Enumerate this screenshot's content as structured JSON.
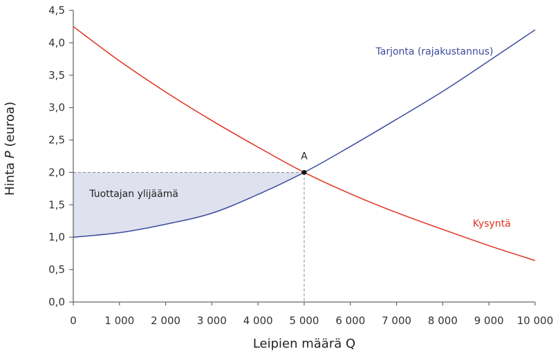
{
  "chart_data": {
    "type": "line",
    "title": "",
    "xlabel": "Leipien määrä Q",
    "ylabel": "Hinta P (euroa)",
    "ylabel_parts": {
      "pre": "Hinta ",
      "italic": "P",
      "post": " (euroa)"
    },
    "xlim": [
      0,
      10000
    ],
    "ylim": [
      0,
      4.5
    ],
    "grid": false,
    "x_ticks": [
      0,
      1000,
      2000,
      3000,
      4000,
      5000,
      6000,
      7000,
      8000,
      9000,
      10000
    ],
    "x_tick_labels": [
      "0",
      "1 000",
      "2 000",
      "3 000",
      "4 000",
      "5 000",
      "6 000",
      "7 000",
      "8 000",
      "9 000",
      "10 000"
    ],
    "y_ticks": [
      0,
      0.5,
      1.0,
      1.5,
      2.0,
      2.5,
      3.0,
      3.5,
      4.0,
      4.5
    ],
    "y_tick_labels": [
      "0,0",
      "0,5",
      "1,0",
      "1,5",
      "2,0",
      "2,5",
      "3,0",
      "3,5",
      "4,0",
      "4,5"
    ],
    "series": [
      {
        "name": "Tarjonta (rajakustannus)",
        "color": "#3b4a9c",
        "x": [
          0,
          1000,
          2000,
          3000,
          4000,
          5000,
          6000,
          7000,
          8000,
          9000,
          10000
        ],
        "values": [
          1.0,
          1.07,
          1.2,
          1.37,
          1.66,
          2.0,
          2.4,
          2.82,
          3.25,
          3.72,
          4.2
        ]
      },
      {
        "name": "Kysyntä",
        "color": "#e0301e",
        "x": [
          0,
          1000,
          2000,
          3000,
          4000,
          5000,
          6000,
          7000,
          8000,
          9000,
          10000
        ],
        "values": [
          4.25,
          3.72,
          3.24,
          2.8,
          2.39,
          2.0,
          1.67,
          1.38,
          1.12,
          0.87,
          0.64
        ]
      }
    ],
    "equilibrium": {
      "label": "A",
      "x": 5000,
      "y": 2.0
    },
    "shaded_region": {
      "label": "Tuottajan ylijäämä",
      "between": "supply and P=2.0 from Q=0 to Q=5000",
      "color": "#dfe1ef"
    },
    "annotations": [
      {
        "text": "Tarjonta (rajakustannus)",
        "x": 6550,
        "y": 3.82,
        "color": "#3b4a9c"
      },
      {
        "text": "Kysyntä",
        "x": 8650,
        "y": 1.16,
        "color": "#e0301e"
      },
      {
        "text": "Tuottajan ylijäämä",
        "x": 350,
        "y": 1.62,
        "color": "#222222"
      },
      {
        "text": "A",
        "x": 5000,
        "y": 2.2,
        "color": "#222222"
      }
    ]
  }
}
